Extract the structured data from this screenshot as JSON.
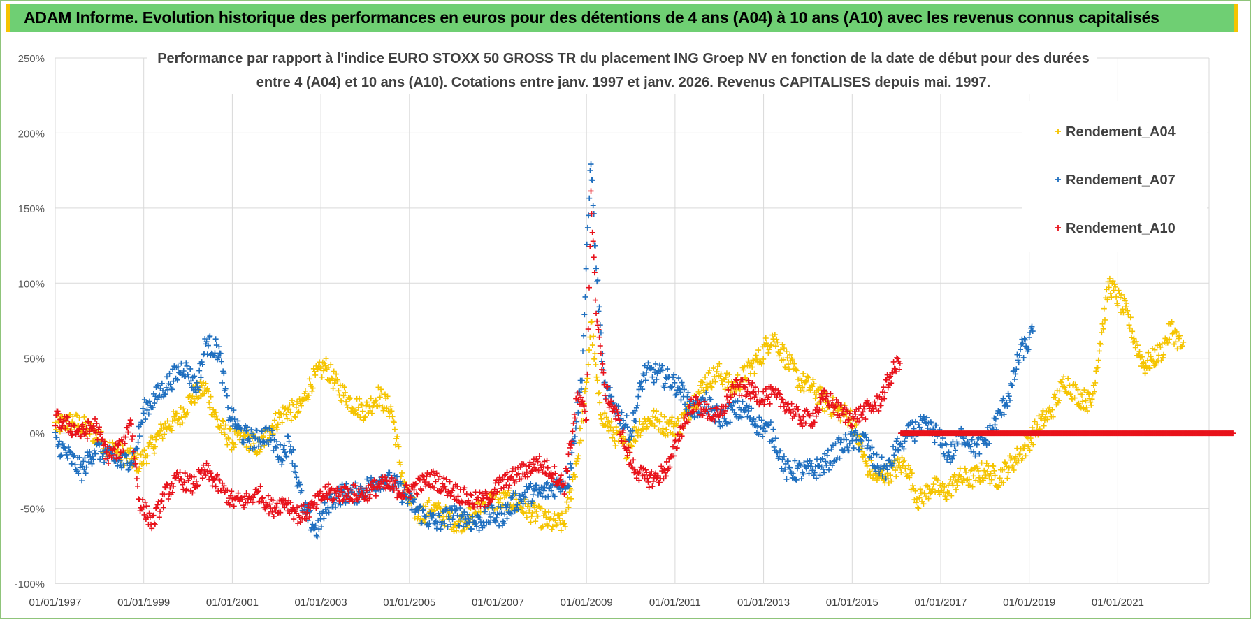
{
  "banner": {
    "title": "ADAM Informe. Evolution historique des performances en euros pour des détentions de 4 ans (A04) à 10 ans (A10) avec les revenus connus capitalisés"
  },
  "colors": {
    "banner_bg": "#6fcf73",
    "banner_accent": "#f5c400",
    "A04": "#f5c400",
    "A07": "#1f6fbf",
    "A10": "#e8121b",
    "grid": "#d9d9d9"
  },
  "chart_data": {
    "type": "scatter",
    "marker": "plus",
    "title_lines": [
      "Performance par rapport à l'indice EURO STOXX 50 GROSS TR  du placement ING Groep NV en fonction de la date de début pour des durées",
      "entre 4 (A04) et 10 ans (A10).  Cotations entre janv. 1997 et janv. 2026. Revenus CAPITALISES depuis mai. 1997."
    ],
    "xlabel": "",
    "ylabel": "",
    "x_ticks": [
      "01/01/1997",
      "01/01/1999",
      "01/01/2001",
      "01/01/2003",
      "01/01/2005",
      "01/01/2007",
      "01/01/2009",
      "01/01/2011",
      "01/01/2013",
      "01/01/2015",
      "01/01/2017",
      "01/01/2019",
      "01/01/2021"
    ],
    "y_ticks": [
      "250%",
      "200%",
      "150%",
      "100%",
      "50%",
      "0%",
      "-50%",
      "-100%"
    ],
    "ylim": [
      -100,
      250
    ],
    "xlim": [
      "1997-01-01",
      "2023-10-15"
    ],
    "grid": true,
    "legend_position": "top-right",
    "series": [
      {
        "name": "Rendement_A04",
        "color": "#f5c400",
        "x_range": [
          "1997-01-01",
          "2022-01-01"
        ],
        "points": [
          [
            1997.0,
            5
          ],
          [
            1997.4,
            8
          ],
          [
            1997.8,
            2
          ],
          [
            1998.2,
            -10
          ],
          [
            1998.6,
            -15
          ],
          [
            1998.9,
            -20
          ],
          [
            1999.2,
            -8
          ],
          [
            1999.5,
            5
          ],
          [
            1999.8,
            10
          ],
          [
            2000.1,
            25
          ],
          [
            2000.4,
            30
          ],
          [
            2000.7,
            5
          ],
          [
            2001.0,
            -5
          ],
          [
            2001.3,
            -3
          ],
          [
            2001.6,
            -10
          ],
          [
            2001.9,
            5
          ],
          [
            2002.2,
            15
          ],
          [
            2002.5,
            15
          ],
          [
            2002.8,
            35
          ],
          [
            2003.1,
            45
          ],
          [
            2003.4,
            30
          ],
          [
            2003.7,
            20
          ],
          [
            2004.0,
            15
          ],
          [
            2004.3,
            25
          ],
          [
            2004.6,
            15
          ],
          [
            2004.9,
            -40
          ],
          [
            2005.2,
            -55
          ],
          [
            2005.5,
            -50
          ],
          [
            2005.8,
            -55
          ],
          [
            2006.1,
            -60
          ],
          [
            2006.4,
            -55
          ],
          [
            2006.7,
            -45
          ],
          [
            2007.0,
            -45
          ],
          [
            2007.3,
            -45
          ],
          [
            2007.6,
            -50
          ],
          [
            2007.9,
            -55
          ],
          [
            2008.2,
            -60
          ],
          [
            2008.5,
            -60
          ],
          [
            2008.8,
            -15
          ],
          [
            2009.0,
            30
          ],
          [
            2009.1,
            75
          ],
          [
            2009.3,
            15
          ],
          [
            2009.6,
            0
          ],
          [
            2009.9,
            -10
          ],
          [
            2010.2,
            5
          ],
          [
            2010.5,
            10
          ],
          [
            2010.8,
            5
          ],
          [
            2011.1,
            5
          ],
          [
            2011.4,
            20
          ],
          [
            2011.7,
            35
          ],
          [
            2012.0,
            40
          ],
          [
            2012.3,
            30
          ],
          [
            2012.6,
            40
          ],
          [
            2012.9,
            50
          ],
          [
            2013.2,
            65
          ],
          [
            2013.5,
            50
          ],
          [
            2013.8,
            35
          ],
          [
            2014.1,
            30
          ],
          [
            2014.4,
            20
          ],
          [
            2014.7,
            15
          ],
          [
            2015.0,
            10
          ],
          [
            2015.3,
            -20
          ],
          [
            2015.6,
            -30
          ],
          [
            2015.9,
            -25
          ],
          [
            2016.2,
            -20
          ],
          [
            2016.5,
            -45
          ],
          [
            2016.8,
            -35
          ],
          [
            2017.1,
            -40
          ],
          [
            2017.4,
            -30
          ],
          [
            2017.7,
            -30
          ],
          [
            2018.0,
            -25
          ],
          [
            2018.3,
            -30
          ],
          [
            2018.6,
            -20
          ],
          [
            2018.9,
            -10
          ],
          [
            2019.2,
            5
          ],
          [
            2019.5,
            15
          ],
          [
            2019.8,
            35
          ],
          [
            2020.1,
            25
          ],
          [
            2020.4,
            20
          ],
          [
            2020.6,
            60
          ],
          [
            2020.8,
            100
          ],
          [
            2021.0,
            90
          ],
          [
            2021.2,
            80
          ],
          [
            2021.4,
            60
          ],
          [
            2021.6,
            45
          ],
          [
            2021.8,
            50
          ],
          [
            2022.0,
            55
          ],
          [
            2022.2,
            70
          ],
          [
            2022.4,
            60
          ],
          [
            2022.5,
            55
          ]
        ]
      },
      {
        "name": "Rendement_A07",
        "color": "#1f6fbf",
        "x_range": [
          "1997-01-01",
          "2019-01-01"
        ],
        "points": [
          [
            1997.0,
            -5
          ],
          [
            1997.3,
            -15
          ],
          [
            1997.6,
            -25
          ],
          [
            1997.9,
            -10
          ],
          [
            1998.2,
            -15
          ],
          [
            1998.5,
            -20
          ],
          [
            1998.8,
            -15
          ],
          [
            1999.0,
            15
          ],
          [
            1999.3,
            25
          ],
          [
            1999.6,
            35
          ],
          [
            1999.9,
            45
          ],
          [
            2000.2,
            30
          ],
          [
            2000.4,
            60
          ],
          [
            2000.7,
            55
          ],
          [
            2000.9,
            15
          ],
          [
            2001.2,
            0
          ],
          [
            2001.5,
            -5
          ],
          [
            2001.8,
            0
          ],
          [
            2002.1,
            -15
          ],
          [
            2002.3,
            -5
          ],
          [
            2002.6,
            -50
          ],
          [
            2002.9,
            -65
          ],
          [
            2003.2,
            -45
          ],
          [
            2003.5,
            -40
          ],
          [
            2003.8,
            -40
          ],
          [
            2004.1,
            -35
          ],
          [
            2004.4,
            -30
          ],
          [
            2004.7,
            -35
          ],
          [
            2005.0,
            -45
          ],
          [
            2005.3,
            -55
          ],
          [
            2005.6,
            -60
          ],
          [
            2005.9,
            -55
          ],
          [
            2006.2,
            -55
          ],
          [
            2006.5,
            -60
          ],
          [
            2006.8,
            -55
          ],
          [
            2007.1,
            -55
          ],
          [
            2007.4,
            -45
          ],
          [
            2007.7,
            -40
          ],
          [
            2008.0,
            -40
          ],
          [
            2008.3,
            -35
          ],
          [
            2008.6,
            -30
          ],
          [
            2008.9,
            40
          ],
          [
            2009.1,
            185
          ],
          [
            2009.2,
            120
          ],
          [
            2009.4,
            30
          ],
          [
            2009.7,
            15
          ],
          [
            2010.0,
            0
          ],
          [
            2010.3,
            40
          ],
          [
            2010.6,
            40
          ],
          [
            2010.9,
            35
          ],
          [
            2011.1,
            30
          ],
          [
            2011.4,
            15
          ],
          [
            2011.7,
            20
          ],
          [
            2012.0,
            10
          ],
          [
            2012.3,
            15
          ],
          [
            2012.6,
            15
          ],
          [
            2012.9,
            5
          ],
          [
            2013.2,
            0
          ],
          [
            2013.5,
            -25
          ],
          [
            2013.8,
            -25
          ],
          [
            2014.1,
            -25
          ],
          [
            2014.4,
            -20
          ],
          [
            2014.7,
            -10
          ],
          [
            2015.0,
            -5
          ],
          [
            2015.3,
            -5
          ],
          [
            2015.5,
            -20
          ],
          [
            2015.8,
            -25
          ],
          [
            2016.0,
            -10
          ],
          [
            2016.3,
            0
          ],
          [
            2016.6,
            5
          ],
          [
            2016.9,
            0
          ],
          [
            2017.2,
            -15
          ],
          [
            2017.5,
            0
          ],
          [
            2017.8,
            -10
          ],
          [
            2018.0,
            -5
          ],
          [
            2018.3,
            10
          ],
          [
            2018.6,
            30
          ],
          [
            2018.8,
            55
          ],
          [
            2019.0,
            60
          ],
          [
            2019.1,
            70
          ]
        ]
      },
      {
        "name": "Rendement_A10",
        "color": "#e8121b",
        "x_range": [
          "1997-01-01",
          "2016-01-01"
        ],
        "points": [
          [
            1997.0,
            10
          ],
          [
            1997.3,
            5
          ],
          [
            1997.6,
            0
          ],
          [
            1997.9,
            5
          ],
          [
            1998.2,
            -15
          ],
          [
            1998.5,
            -10
          ],
          [
            1998.7,
            10
          ],
          [
            1998.9,
            -45
          ],
          [
            1999.2,
            -60
          ],
          [
            1999.5,
            -40
          ],
          [
            1999.8,
            -30
          ],
          [
            2000.1,
            -35
          ],
          [
            2000.4,
            -25
          ],
          [
            2000.7,
            -35
          ],
          [
            2001.0,
            -45
          ],
          [
            2001.3,
            -45
          ],
          [
            2001.6,
            -40
          ],
          [
            2001.9,
            -50
          ],
          [
            2002.2,
            -45
          ],
          [
            2002.5,
            -55
          ],
          [
            2002.8,
            -50
          ],
          [
            2003.1,
            -40
          ],
          [
            2003.4,
            -40
          ],
          [
            2003.7,
            -40
          ],
          [
            2004.0,
            -40
          ],
          [
            2004.3,
            -35
          ],
          [
            2004.6,
            -35
          ],
          [
            2004.9,
            -40
          ],
          [
            2005.2,
            -35
          ],
          [
            2005.5,
            -30
          ],
          [
            2005.8,
            -35
          ],
          [
            2006.1,
            -40
          ],
          [
            2006.4,
            -45
          ],
          [
            2006.7,
            -45
          ],
          [
            2007.0,
            -35
          ],
          [
            2007.3,
            -30
          ],
          [
            2007.6,
            -25
          ],
          [
            2007.9,
            -20
          ],
          [
            2008.2,
            -25
          ],
          [
            2008.5,
            -35
          ],
          [
            2008.8,
            25
          ],
          [
            2009.0,
            10
          ],
          [
            2009.1,
            160
          ],
          [
            2009.2,
            90
          ],
          [
            2009.4,
            30
          ],
          [
            2009.7,
            10
          ],
          [
            2010.0,
            -20
          ],
          [
            2010.3,
            -30
          ],
          [
            2010.6,
            -30
          ],
          [
            2010.9,
            -20
          ],
          [
            2011.1,
            0
          ],
          [
            2011.4,
            20
          ],
          [
            2011.7,
            15
          ],
          [
            2012.0,
            10
          ],
          [
            2012.3,
            30
          ],
          [
            2012.6,
            30
          ],
          [
            2012.9,
            25
          ],
          [
            2013.2,
            25
          ],
          [
            2013.5,
            20
          ],
          [
            2013.8,
            10
          ],
          [
            2014.1,
            10
          ],
          [
            2014.4,
            25
          ],
          [
            2014.7,
            15
          ],
          [
            2015.0,
            10
          ],
          [
            2015.3,
            15
          ],
          [
            2015.6,
            20
          ],
          [
            2015.9,
            40
          ],
          [
            2016.1,
            50
          ]
        ],
        "flat_zero_from": 2016.1,
        "flat_zero_to": 2023.6
      }
    ]
  }
}
